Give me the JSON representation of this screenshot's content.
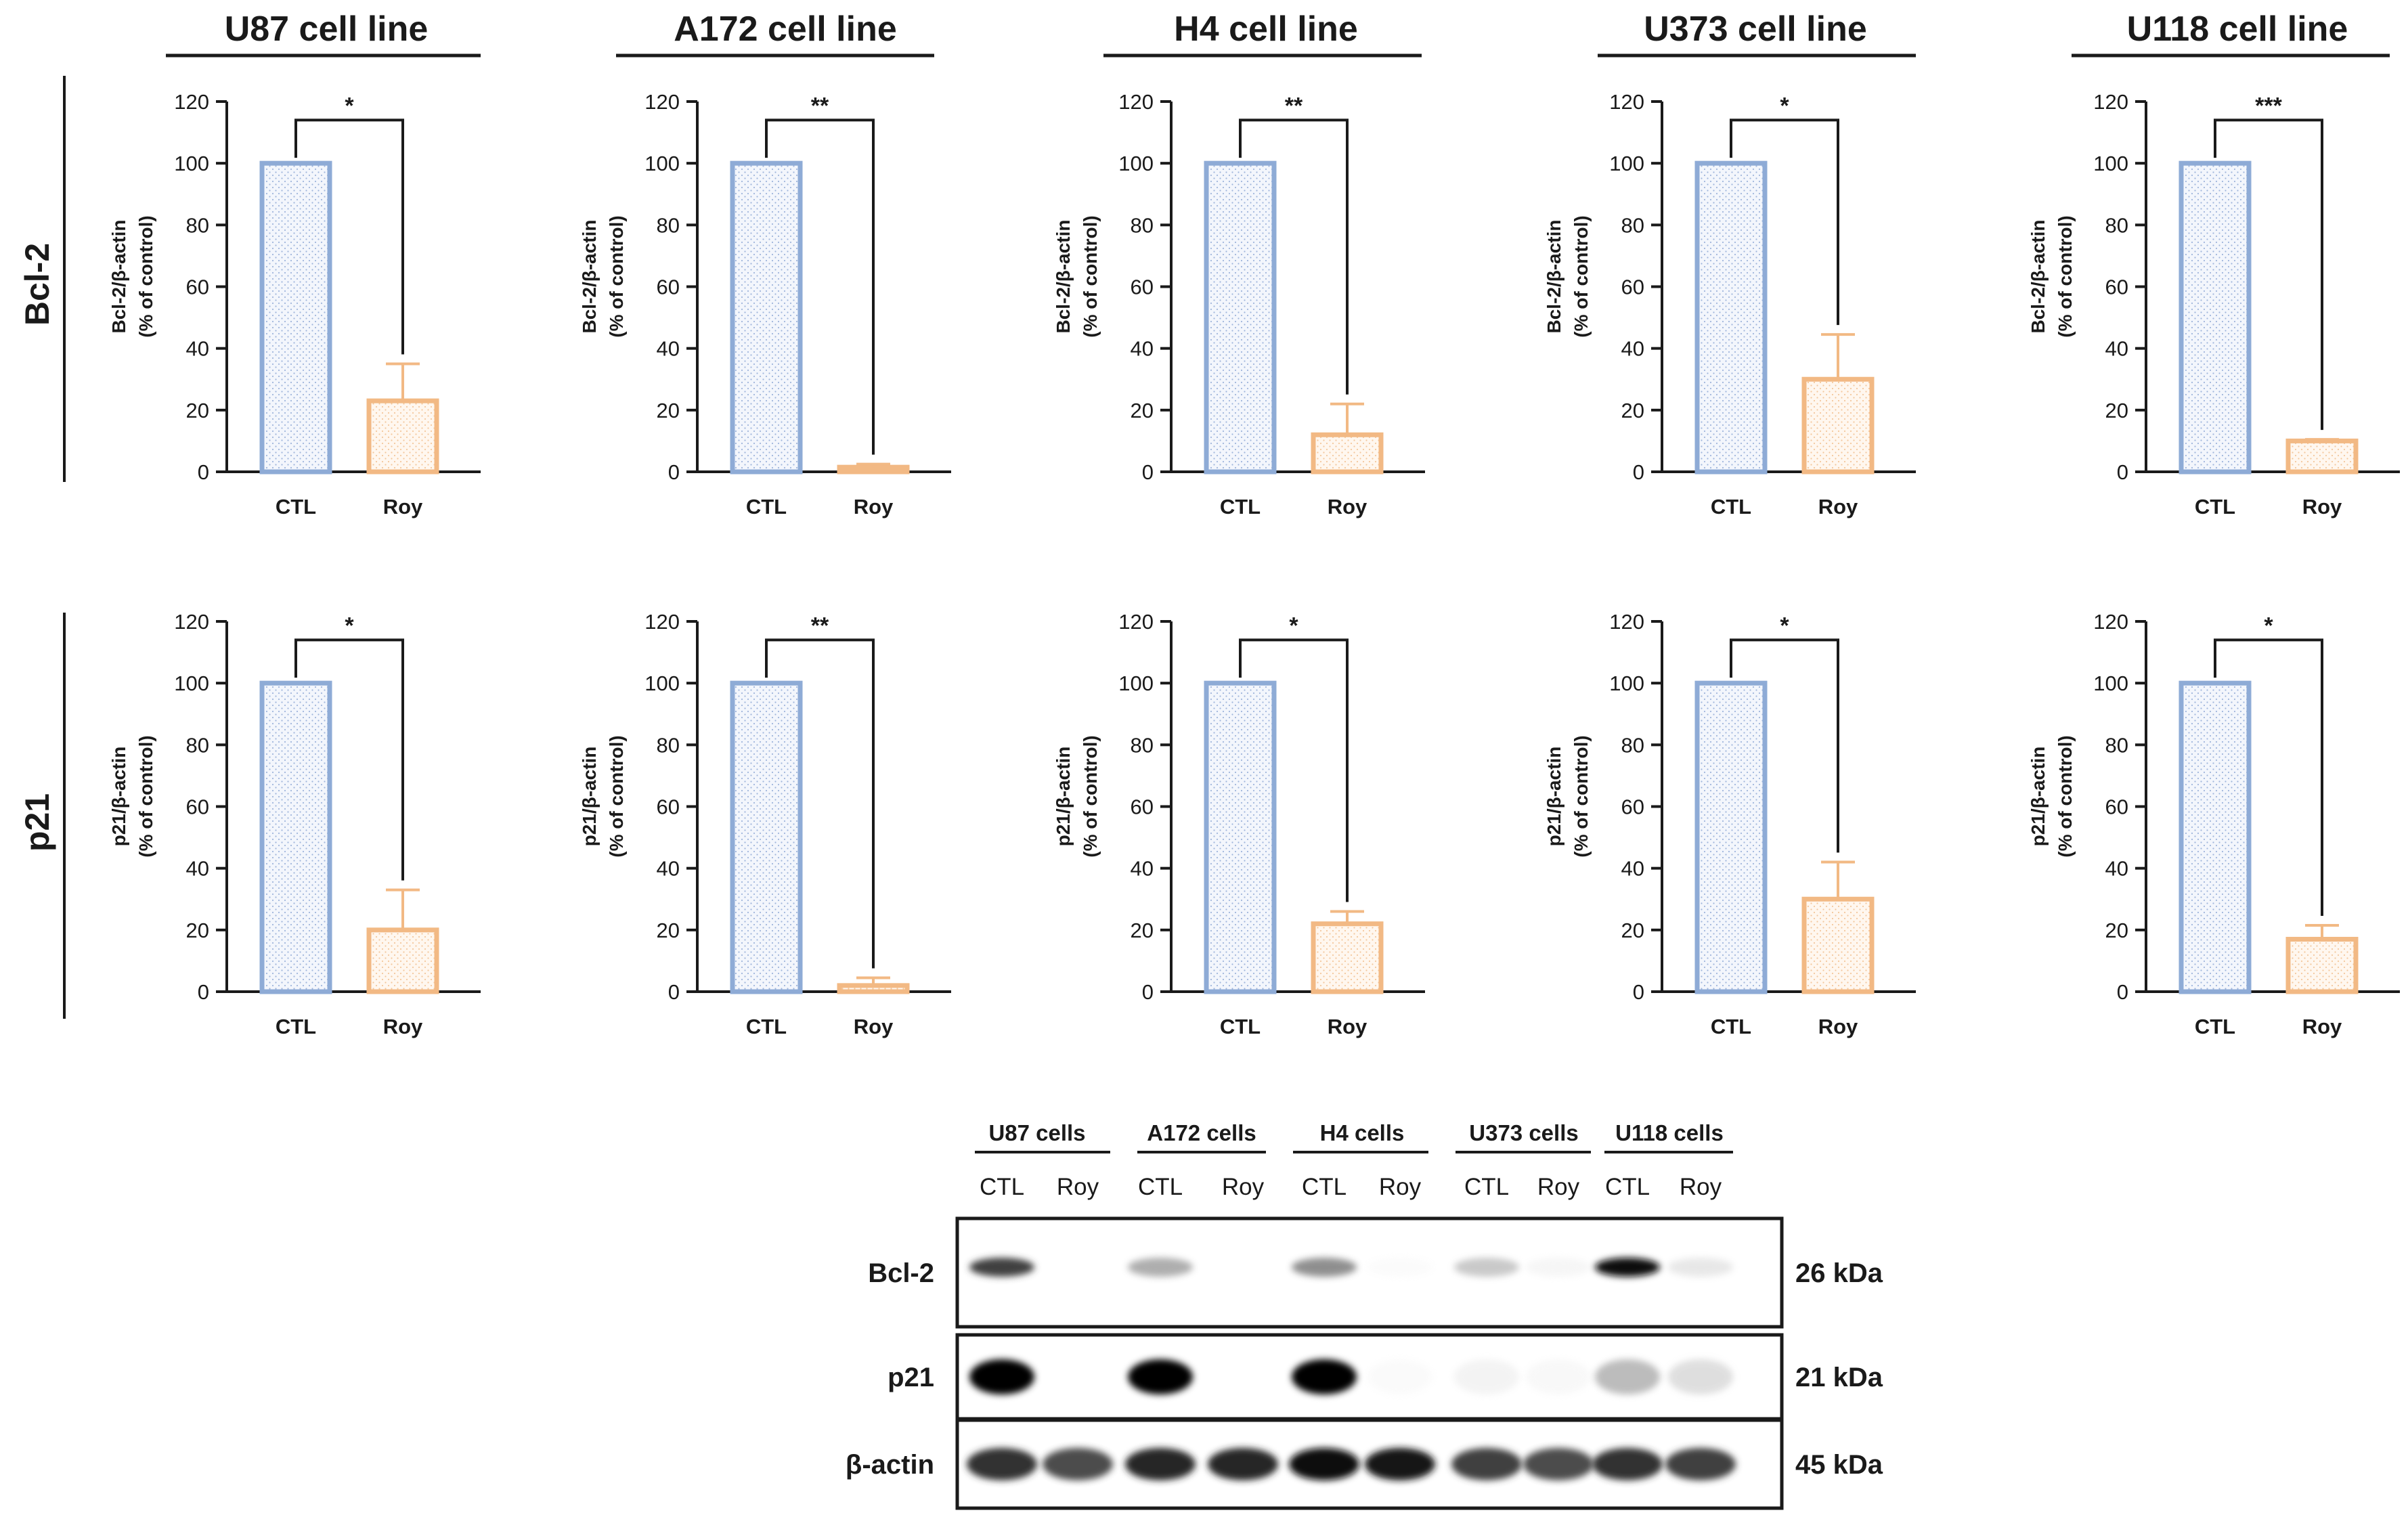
{
  "colors": {
    "ctl": "#8eabd6",
    "roy": "#f2b984",
    "ctl_fill": "#eef3fb",
    "roy_fill": "#fef4ea",
    "ink": "#1a1a1a"
  },
  "row_labels": [
    "Bcl-2",
    "p21"
  ],
  "chart_data": [
    {
      "type": "bar",
      "title": "U87 cell line",
      "row": "Bcl-2",
      "ylabel": [
        "Bcl-2/β-actin",
        "(% of control)"
      ],
      "categories": [
        "CTL",
        "Roy"
      ],
      "values": [
        100,
        23
      ],
      "errors": [
        0,
        12
      ],
      "ylim": [
        0,
        120
      ],
      "yticks": [
        "0",
        "20",
        "40",
        "60",
        "80",
        "100",
        "120"
      ],
      "significance": "*"
    },
    {
      "type": "bar",
      "title": "A172 cell line",
      "row": "Bcl-2",
      "ylabel": [
        "Bcl-2/β-actin",
        "(% of control)"
      ],
      "categories": [
        "CTL",
        "Roy"
      ],
      "values": [
        100,
        1.5
      ],
      "errors": [
        0,
        1
      ],
      "ylim": [
        0,
        120
      ],
      "yticks": [
        "0",
        "20",
        "40",
        "60",
        "80",
        "100",
        "120"
      ],
      "significance": "**"
    },
    {
      "type": "bar",
      "title": "H4 cell line",
      "row": "Bcl-2",
      "ylabel": [
        "Bcl-2/β-actin",
        "(% of control)"
      ],
      "categories": [
        "CTL",
        "Roy"
      ],
      "values": [
        100,
        12
      ],
      "errors": [
        0,
        10
      ],
      "ylim": [
        0,
        120
      ],
      "yticks": [
        "0",
        "20",
        "40",
        "60",
        "80",
        "100",
        "120"
      ],
      "significance": "**"
    },
    {
      "type": "bar",
      "title": "U373 cell line",
      "row": "Bcl-2",
      "ylabel": [
        "Bcl-2/β-actin",
        "(% of control)"
      ],
      "categories": [
        "CTL",
        "Roy"
      ],
      "values": [
        100,
        30
      ],
      "errors": [
        0,
        14.5
      ],
      "ylim": [
        0,
        120
      ],
      "yticks": [
        "0",
        "20",
        "40",
        "60",
        "80",
        "100",
        "120"
      ],
      "significance": "*"
    },
    {
      "type": "bar",
      "title": "U118 cell line",
      "row": "Bcl-2",
      "ylabel": [
        "Bcl-2/β-actin",
        "(% of control)"
      ],
      "categories": [
        "CTL",
        "Roy"
      ],
      "values": [
        100,
        10
      ],
      "errors": [
        0,
        0.5
      ],
      "ylim": [
        0,
        120
      ],
      "yticks": [
        "0",
        "20",
        "40",
        "60",
        "80",
        "100",
        "120"
      ],
      "significance": "***"
    },
    {
      "type": "bar",
      "title": "",
      "row": "p21",
      "ylabel": [
        "p21/β-actin",
        "(% of control)"
      ],
      "categories": [
        "CTL",
        "Roy"
      ],
      "values": [
        100,
        20
      ],
      "errors": [
        0,
        13
      ],
      "ylim": [
        0,
        120
      ],
      "yticks": [
        "0",
        "20",
        "40",
        "60",
        "80",
        "100",
        "120"
      ],
      "significance": "*"
    },
    {
      "type": "bar",
      "title": "",
      "row": "p21",
      "ylabel": [
        "p21/β-actin",
        "(% of control)"
      ],
      "categories": [
        "CTL",
        "Roy"
      ],
      "values": [
        100,
        2
      ],
      "errors": [
        0,
        2.5
      ],
      "ylim": [
        0,
        120
      ],
      "yticks": [
        "0",
        "20",
        "40",
        "60",
        "80",
        "100",
        "120"
      ],
      "significance": "**"
    },
    {
      "type": "bar",
      "title": "",
      "row": "p21",
      "ylabel": [
        "p21/β-actin",
        "(% of control)"
      ],
      "categories": [
        "CTL",
        "Roy"
      ],
      "values": [
        100,
        22
      ],
      "errors": [
        0,
        4
      ],
      "ylim": [
        0,
        120
      ],
      "yticks": [
        "0",
        "20",
        "40",
        "60",
        "80",
        "100",
        "120"
      ],
      "significance": "*"
    },
    {
      "type": "bar",
      "title": "",
      "row": "p21",
      "ylabel": [
        "p21/β-actin",
        "(% of control)"
      ],
      "categories": [
        "CTL",
        "Roy"
      ],
      "values": [
        100,
        30
      ],
      "errors": [
        0,
        12
      ],
      "ylim": [
        0,
        120
      ],
      "yticks": [
        "0",
        "20",
        "40",
        "60",
        "80",
        "100",
        "120"
      ],
      "significance": "*"
    },
    {
      "type": "bar",
      "title": "",
      "row": "p21",
      "ylabel": [
        "p21/β-actin",
        "(% of control)"
      ],
      "categories": [
        "CTL",
        "Roy"
      ],
      "values": [
        100,
        17
      ],
      "errors": [
        0,
        4.5
      ],
      "ylim": [
        0,
        120
      ],
      "yticks": [
        "0",
        "20",
        "40",
        "60",
        "80",
        "100",
        "120"
      ],
      "significance": "*"
    }
  ],
  "western_blot": {
    "groups": [
      "U87 cells",
      "A172 cells",
      "H4 cells",
      "U373 cells",
      "U118 cells"
    ],
    "lanes": [
      "CTL",
      "Roy",
      "CTL",
      "Roy",
      "CTL",
      "Roy",
      "CTL",
      "Roy",
      "CTL",
      "Roy"
    ],
    "proteins": [
      {
        "name": "Bcl-2",
        "size": "26 kDa",
        "intensities": [
          0.75,
          0,
          0.45,
          0,
          0.55,
          0.05,
          0.35,
          0.1,
          0.95,
          0.2
        ]
      },
      {
        "name": "p21",
        "size": "21 kDa",
        "intensities": [
          1,
          0,
          1,
          0,
          1,
          0.06,
          0.12,
          0.08,
          0.4,
          0.25
        ]
      },
      {
        "name": "β-actin",
        "size": "45 kDa",
        "intensities": [
          0.8,
          0.72,
          0.85,
          0.85,
          0.95,
          0.9,
          0.75,
          0.72,
          0.8,
          0.75
        ]
      }
    ]
  }
}
